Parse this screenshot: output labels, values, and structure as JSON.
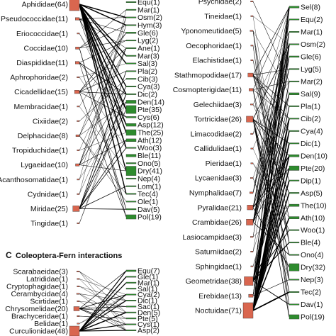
{
  "colors": {
    "insect": "#d9664f",
    "fern": "#2e8b2e",
    "link": "#000000",
    "box_stroke": "#333333"
  },
  "panel_a": {
    "insects": [
      {
        "label": "Aphididae(64)",
        "size": 64
      },
      {
        "label": "Pseudococcidae(11)",
        "size": 11
      },
      {
        "label": "Eriococcidae(1)",
        "size": 1
      },
      {
        "label": "Coccidae(10)",
        "size": 10
      },
      {
        "label": "Diaspididae(11)",
        "size": 11
      },
      {
        "label": "Aphrophoridae(2)",
        "size": 2
      },
      {
        "label": "Cicadellidae(15)",
        "size": 15
      },
      {
        "label": "Membracidae(1)",
        "size": 1
      },
      {
        "label": "Cixiidae(2)",
        "size": 2
      },
      {
        "label": "Delphacidae(8)",
        "size": 8
      },
      {
        "label": "Tropiduchidae(1)",
        "size": 1
      },
      {
        "label": "Lygaeidae(10)",
        "size": 10
      },
      {
        "label": "Acanthosomatidae(1)",
        "size": 1
      },
      {
        "label": "Cydnidae(1)",
        "size": 1
      },
      {
        "label": "Miridae(25)",
        "size": 25
      },
      {
        "label": "Tingidae(1)",
        "size": 1
      }
    ],
    "ferns": [
      {
        "label": "Equ(1)",
        "size": 1
      },
      {
        "label": "Mar(1)",
        "size": 1
      },
      {
        "label": "Osm(2)",
        "size": 2
      },
      {
        "label": "Hym(3)",
        "size": 3
      },
      {
        "label": "Gle(6)",
        "size": 6
      },
      {
        "label": "Lyg(2)",
        "size": 2
      },
      {
        "label": "Ane(1)",
        "size": 1
      },
      {
        "label": "Mar(3)",
        "size": 3
      },
      {
        "label": "Sal(3)",
        "size": 3
      },
      {
        "label": "Pla(2)",
        "size": 2
      },
      {
        "label": "Cib(3)",
        "size": 3
      },
      {
        "label": "Cya(3)",
        "size": 3
      },
      {
        "label": "Dic(2)",
        "size": 2
      },
      {
        "label": "Den(14)",
        "size": 14
      },
      {
        "label": "Pte(35)",
        "size": 35
      },
      {
        "label": "Cys(6)",
        "size": 6
      },
      {
        "label": "Asp(12)",
        "size": 12
      },
      {
        "label": "The(25)",
        "size": 25
      },
      {
        "label": "Ath(12)",
        "size": 12
      },
      {
        "label": "Woo(3)",
        "size": 3
      },
      {
        "label": "Ble(11)",
        "size": 11
      },
      {
        "label": "Ono(5)",
        "size": 5
      },
      {
        "label": "Dry(41)",
        "size": 41
      },
      {
        "label": "Nep(4)",
        "size": 4
      },
      {
        "label": "Lom(1)",
        "size": 1
      },
      {
        "label": "Tec(4)",
        "size": 4
      },
      {
        "label": "Ole(1)",
        "size": 1
      },
      {
        "label": "Dav(5)",
        "size": 5
      },
      {
        "label": "Pol(19)",
        "size": 19
      }
    ]
  },
  "panel_b": {
    "insects": [
      {
        "label": "Psychidae(2)",
        "size": 2
      },
      {
        "label": "Tineidae(1)",
        "size": 1
      },
      {
        "label": "Yponomeutidae(5)",
        "size": 5
      },
      {
        "label": "Oecophoridae(1)",
        "size": 1
      },
      {
        "label": "Elachistidae(1)",
        "size": 1
      },
      {
        "label": "Stathmopodidae(17)",
        "size": 17
      },
      {
        "label": "Cosmopterigidae(11)",
        "size": 11
      },
      {
        "label": "Gelechiidae(3)",
        "size": 3
      },
      {
        "label": "Tortricidae(26)",
        "size": 26
      },
      {
        "label": "Limacodidae(2)",
        "size": 2
      },
      {
        "label": "Callidulidae(1)",
        "size": 1
      },
      {
        "label": "Pieridae(1)",
        "size": 1
      },
      {
        "label": "Lycaenidae(3)",
        "size": 3
      },
      {
        "label": "Nymphalidae(7)",
        "size": 7
      },
      {
        "label": "Pyralidae(21)",
        "size": 21
      },
      {
        "label": "Crambidae(26)",
        "size": 26
      },
      {
        "label": "Lasiocampidae(3)",
        "size": 3
      },
      {
        "label": "Saturniidae(2)",
        "size": 2
      },
      {
        "label": "Sphingidae(1)",
        "size": 1
      },
      {
        "label": "Geometridae(38)",
        "size": 38
      },
      {
        "label": "Erebidae(13)",
        "size": 13
      },
      {
        "label": "Noctuidae(71)",
        "size": 71
      }
    ],
    "ferns": [
      {
        "label": "Sel(8)",
        "size": 8
      },
      {
        "label": "Equ(2)",
        "size": 2
      },
      {
        "label": "Mar(1)",
        "size": 1
      },
      {
        "label": "Osm(2)",
        "size": 2
      },
      {
        "label": "Gle(6)",
        "size": 6
      },
      {
        "label": "Lyg(5)",
        "size": 5
      },
      {
        "label": "Mar(2)",
        "size": 2
      },
      {
        "label": "Sal(9)",
        "size": 9
      },
      {
        "label": "Pla(1)",
        "size": 1
      },
      {
        "label": "Cib(2)",
        "size": 2
      },
      {
        "label": "Cya(4)",
        "size": 4
      },
      {
        "label": "Dic(1)",
        "size": 1
      },
      {
        "label": "Den(10)",
        "size": 10
      },
      {
        "label": "Pte(20)",
        "size": 20
      },
      {
        "label": "Dip(1)",
        "size": 1
      },
      {
        "label": "Asp(5)",
        "size": 5
      },
      {
        "label": "The(10)",
        "size": 10
      },
      {
        "label": "Ath(10)",
        "size": 10
      },
      {
        "label": "Woo(1)",
        "size": 1
      },
      {
        "label": "Ble(4)",
        "size": 4
      },
      {
        "label": "Ono(4)",
        "size": 4
      },
      {
        "label": "Dry(32)",
        "size": 32
      },
      {
        "label": "Nep(3)",
        "size": 3
      },
      {
        "label": "Tec(2)",
        "size": 2
      },
      {
        "label": "Dav(1)",
        "size": 1
      },
      {
        "label": "Pol(19)",
        "size": 19
      }
    ]
  },
  "panel_c": {
    "letter": "C",
    "title": "Coleoptera-Fern interactions",
    "insects": [
      {
        "label": "Scarabaeidae(3)",
        "size": 3
      },
      {
        "label": "Latrididae(1)",
        "size": 1
      },
      {
        "label": "Cryptophagidae(1)",
        "size": 1
      },
      {
        "label": "Cerambycidae(4)",
        "size": 4
      },
      {
        "label": "Scirtidae(1)",
        "size": 1
      },
      {
        "label": "Chrysomelidae(20)",
        "size": 20
      },
      {
        "label": "Brachyceridae(1)",
        "size": 1
      },
      {
        "label": "Belidae(1)",
        "size": 1
      },
      {
        "label": "Curculionidae(48)",
        "size": 48
      }
    ],
    "ferns": [
      {
        "label": "Equ(7)",
        "size": 7
      },
      {
        "label": "Gle(1)",
        "size": 1
      },
      {
        "label": "Mar(1)",
        "size": 1
      },
      {
        "label": "Sal(1)",
        "size": 1
      },
      {
        "label": "Cya(2)",
        "size": 2
      },
      {
        "label": "Dic(1)",
        "size": 1
      },
      {
        "label": "Sac(1)",
        "size": 1
      },
      {
        "label": "Den(5)",
        "size": 5
      },
      {
        "label": "Pte(5)",
        "size": 5
      },
      {
        "label": "Cys(1)",
        "size": 1
      },
      {
        "label": "Asp(2)",
        "size": 2
      }
    ]
  }
}
